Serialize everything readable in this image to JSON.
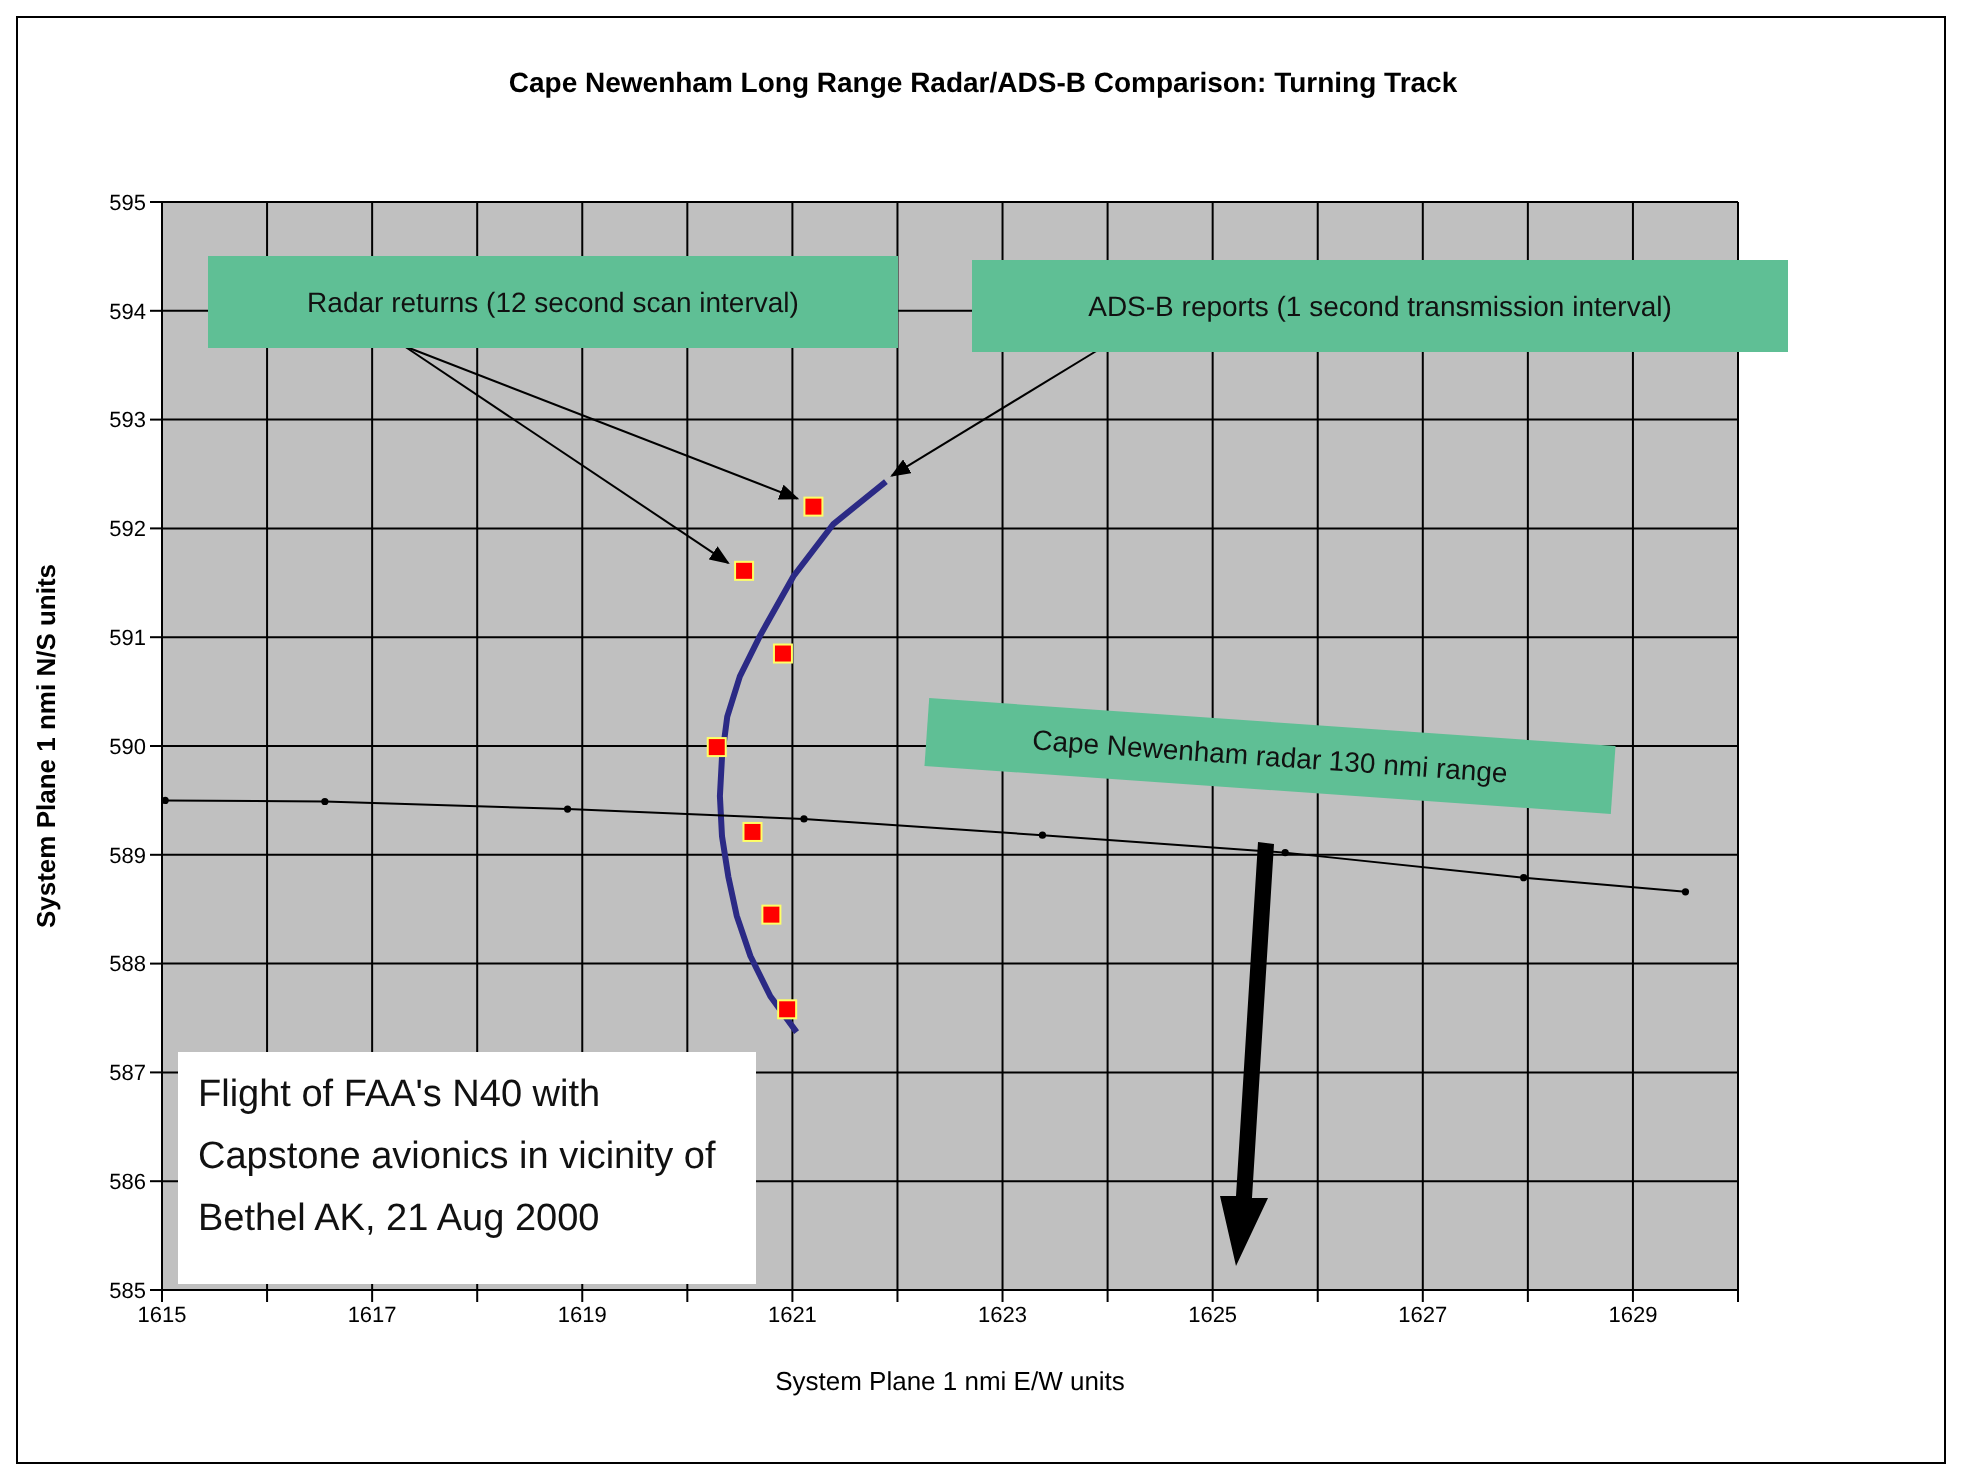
{
  "chart_data": {
    "type": "scatter",
    "title": "Cape Newenham Long Range Radar/ADS-B Comparison: Turning Track",
    "xlabel": "System Plane 1 nmi E/W units",
    "ylabel": "System Plane 1 nmi N/S units",
    "xlim": [
      1615,
      1630
    ],
    "ylim": [
      585,
      595
    ],
    "xticks": [
      1615,
      {
        "value": 1616,
        "label": null
      },
      1617,
      {
        "value": 1618,
        "label": null
      },
      1619,
      {
        "value": 1620,
        "label": null
      },
      1621,
      {
        "value": 1622,
        "label": null
      },
      1623,
      {
        "value": 1624,
        "label": null
      },
      1625,
      {
        "value": 1626,
        "label": null
      },
      1627,
      {
        "value": 1628,
        "label": null
      },
      1629,
      {
        "value": 1630,
        "label": null
      }
    ],
    "yticks": [
      585,
      586,
      587,
      588,
      589,
      590,
      591,
      592,
      593,
      594,
      595
    ],
    "grid": true,
    "legend": false,
    "series": [
      {
        "type": "line",
        "marker": "none",
        "color": "#2b2a85",
        "x": [
          1621.89,
          1621.39,
          1621.01,
          1620.69,
          1620.5,
          1620.38,
          1620.33,
          1620.31,
          1620.33,
          1620.39,
          1620.47,
          1620.6,
          1620.79,
          1621.04
        ],
        "values": [
          592.43,
          592.04,
          591.56,
          591.01,
          590.64,
          590.27,
          589.9,
          589.54,
          589.17,
          588.8,
          588.44,
          588.07,
          587.7,
          587.37
        ]
      },
      {
        "type": "scatter",
        "marker": "square",
        "color": "#ff0000",
        "x": [
          1621.2,
          1620.54,
          1620.91,
          1620.28,
          1620.62,
          1620.8,
          1620.95
        ],
        "values": [
          592.2,
          591.61,
          590.85,
          589.99,
          589.21,
          588.45,
          587.58
        ]
      },
      {
        "type": "line",
        "marker": "circle",
        "color": "#000000",
        "x": [
          1615.03,
          1616.55,
          1618.86,
          1621.11,
          1623.38,
          1625.69,
          1627.96,
          1629.5
        ],
        "values": [
          589.5,
          589.49,
          589.42,
          589.33,
          589.18,
          589.02,
          588.79,
          588.66
        ]
      }
    ],
    "annotations": [
      {
        "text": "Radar returns (12 second scan interval)",
        "x": 1621.2,
        "y": 592.2
      },
      {
        "text": "ADS-B reports (1 second transmission interval)",
        "x": 1621.89,
        "y": 592.43
      },
      "Cape Newenham radar 130 nmi range",
      "Flight of FAA's N40 with Capstone avionics in vicinity of Bethel AK, 21 Aug 2000"
    ]
  }
}
